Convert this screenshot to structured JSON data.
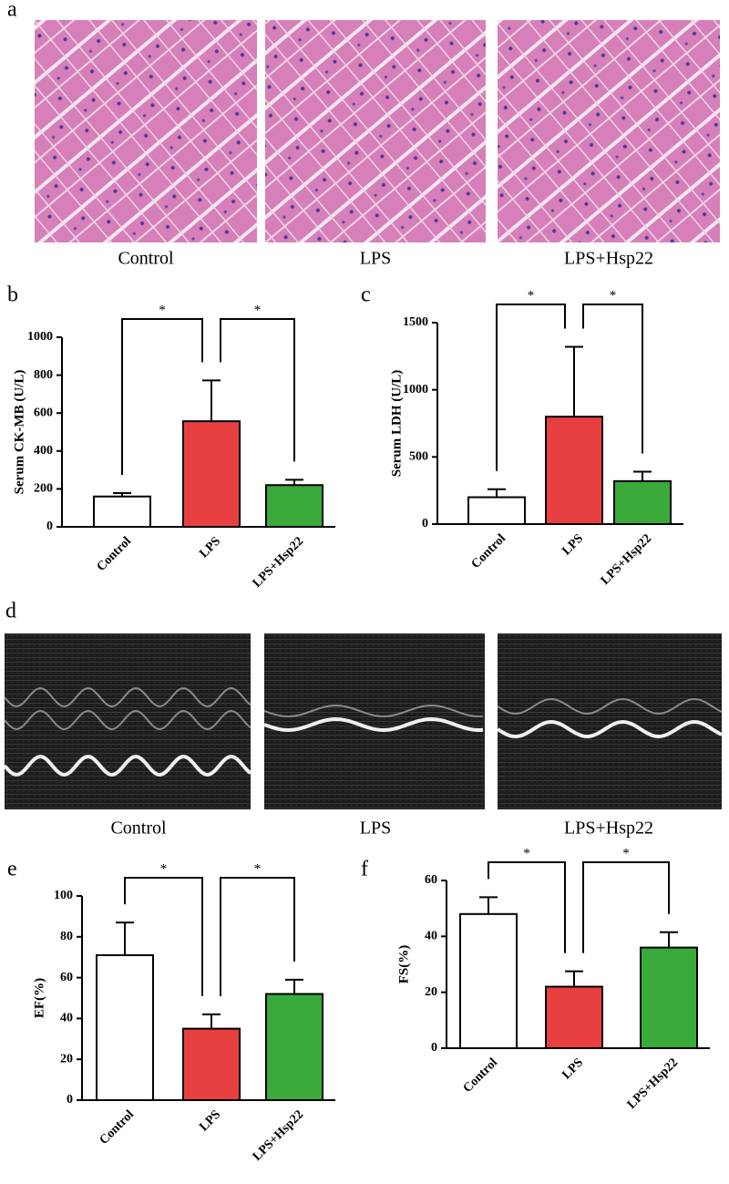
{
  "panels": {
    "a": {
      "label": "a",
      "captions": [
        "Control",
        "LPS",
        "LPS+Hsp22"
      ]
    },
    "d": {
      "label": "d",
      "captions": [
        "Control",
        "LPS",
        "LPS+Hsp22"
      ]
    }
  },
  "chart_data": [
    {
      "type": "bar",
      "panel": "b",
      "ylabel": "Serum CK-MB (U/L)",
      "categories": [
        "Control",
        "LPS",
        "LPS+Hsp22"
      ],
      "values": [
        160,
        557,
        220
      ],
      "errors": [
        18,
        215,
        28
      ],
      "colors": [
        "#ffffff",
        "#e84040",
        "#3aaa3a"
      ],
      "ylim": [
        0,
        1000
      ],
      "yticks": [
        0,
        200,
        400,
        600,
        800,
        1000
      ],
      "significance": [
        "*",
        "*"
      ]
    },
    {
      "type": "bar",
      "panel": "c",
      "ylabel": "Serum LDH (U/L)",
      "categories": [
        "Control",
        "LPS",
        "LPS+Hsp22"
      ],
      "values": [
        200,
        800,
        320
      ],
      "errors": [
        60,
        520,
        70
      ],
      "colors": [
        "#ffffff",
        "#e84040",
        "#3aaa3a"
      ],
      "ylim": [
        0,
        1500
      ],
      "yticks": [
        0,
        500,
        1000,
        1500
      ],
      "significance": [
        "*",
        "*"
      ]
    },
    {
      "type": "bar",
      "panel": "e",
      "ylabel": "EF(%)",
      "categories": [
        "Control",
        "LPS",
        "LPS+Hsp22"
      ],
      "values": [
        71,
        35,
        52
      ],
      "errors": [
        16,
        7,
        7
      ],
      "colors": [
        "#ffffff",
        "#e84040",
        "#3aaa3a"
      ],
      "ylim": [
        0,
        100
      ],
      "yticks": [
        0,
        20,
        40,
        60,
        80,
        100
      ],
      "significance": [
        "*",
        "*"
      ]
    },
    {
      "type": "bar",
      "panel": "f",
      "ylabel": "FS(%)",
      "categories": [
        "Control",
        "LPS",
        "LPS+Hsp22"
      ],
      "values": [
        48,
        22,
        36
      ],
      "errors": [
        6,
        5.5,
        5.5
      ],
      "colors": [
        "#ffffff",
        "#e84040",
        "#3aaa3a"
      ],
      "ylim": [
        0,
        60
      ],
      "yticks": [
        0,
        20,
        40,
        60
      ],
      "significance": [
        "*",
        "*"
      ]
    }
  ]
}
